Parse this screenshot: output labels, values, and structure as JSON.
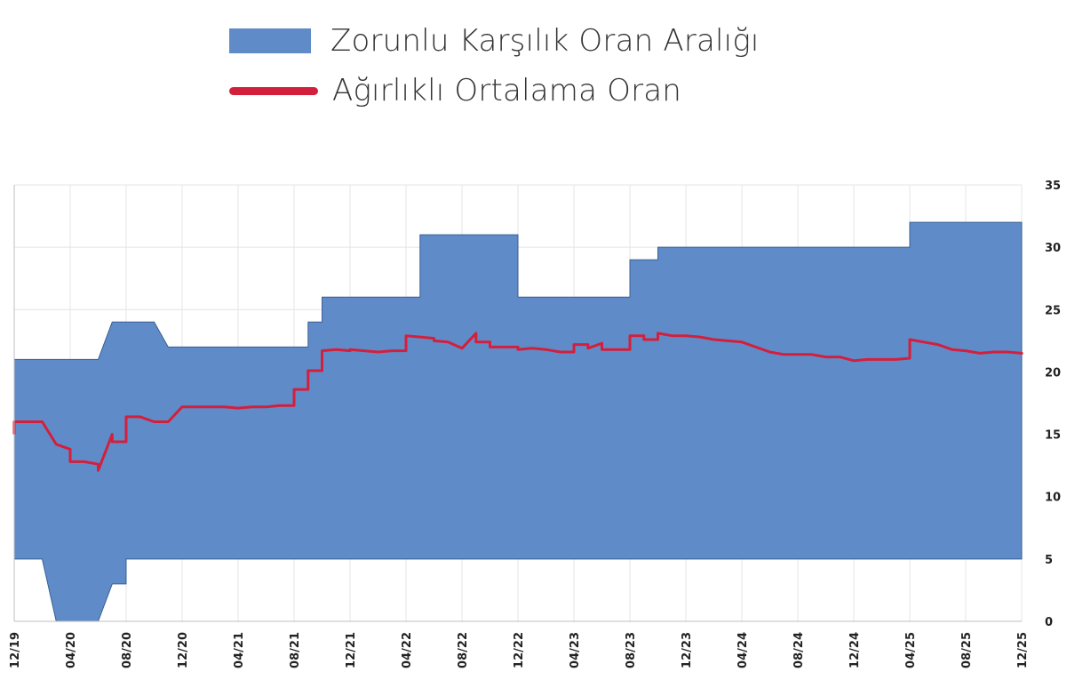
{
  "legend": {
    "range_label": "Zorunlu Karşılık Oran Aralığı",
    "average_label": "Ağırlıklı Ortalama Oran"
  },
  "colors": {
    "range": "#5f8cc8",
    "average": "#d41f3c",
    "grid": "#e4e4e4"
  },
  "chart_data": {
    "type": "area",
    "title": "",
    "xlabel": "",
    "ylabel": "",
    "x_start": "12/19",
    "x_end": "12/25",
    "x_unit": "month",
    "ylim": [
      0,
      35
    ],
    "yticks": [
      0,
      5,
      10,
      15,
      20,
      25,
      30,
      35
    ],
    "y_axis_side": "right",
    "grid": true,
    "legend_position": "top-center",
    "x_tick_labels": [
      "12/19",
      "04/20",
      "08/20",
      "12/20",
      "04/21",
      "08/21",
      "12/21",
      "04/22",
      "08/22",
      "12/22",
      "04/23",
      "08/23",
      "12/23",
      "04/24",
      "08/24",
      "12/24",
      "04/25",
      "08/25",
      "12/25"
    ],
    "series": [
      {
        "name": "Zorunlu Karşılık Oran Aralığı",
        "kind": "range_area",
        "upper": [
          [
            "12/19",
            21
          ],
          [
            "03/20",
            21
          ],
          [
            "04/20",
            21
          ],
          [
            "05/20",
            21
          ],
          [
            "06/20",
            21
          ],
          [
            "07/20",
            24
          ],
          [
            "09/20",
            24
          ],
          [
            "10/20",
            24
          ],
          [
            "11/20",
            22
          ],
          [
            "12/20",
            22
          ],
          [
            "08/21",
            22
          ],
          [
            "09/21",
            22
          ],
          [
            "09/21",
            24
          ],
          [
            "10/21",
            24
          ],
          [
            "10/21",
            26
          ],
          [
            "05/22",
            26
          ],
          [
            "05/22",
            31
          ],
          [
            "11/22",
            31
          ],
          [
            "12/22",
            31
          ],
          [
            "12/22",
            26
          ],
          [
            "07/23",
            26
          ],
          [
            "08/23",
            26
          ],
          [
            "08/23",
            29
          ],
          [
            "09/23",
            29
          ],
          [
            "10/23",
            29
          ],
          [
            "10/23",
            30
          ],
          [
            "03/25",
            30
          ],
          [
            "04/25",
            30
          ],
          [
            "04/25",
            32
          ],
          [
            "12/25",
            32
          ]
        ],
        "lower": [
          [
            "12/19",
            5
          ],
          [
            "02/20",
            5
          ],
          [
            "03/20",
            0
          ],
          [
            "06/20",
            0
          ],
          [
            "07/20",
            3
          ],
          [
            "08/20",
            3
          ],
          [
            "08/20",
            5
          ],
          [
            "12/25",
            5
          ]
        ]
      },
      {
        "name": "Ağırlıklı Ortalama Oran",
        "kind": "line",
        "points": [
          [
            "12/19",
            15
          ],
          [
            "12/19",
            16
          ],
          [
            "02/20",
            16
          ],
          [
            "03/20",
            14.2
          ],
          [
            "04/20",
            13.8
          ],
          [
            "04/20",
            12.8
          ],
          [
            "05/20",
            12.8
          ],
          [
            "06/20",
            12.6
          ],
          [
            "06/20",
            12.1
          ],
          [
            "07/20",
            15
          ],
          [
            "07/20",
            14.4
          ],
          [
            "08/20",
            14.4
          ],
          [
            "08/20",
            16.4
          ],
          [
            "09/20",
            16.4
          ],
          [
            "10/20",
            16
          ],
          [
            "11/20",
            16
          ],
          [
            "12/20",
            17.2
          ],
          [
            "01/21",
            17.2
          ],
          [
            "02/21",
            17.2
          ],
          [
            "03/21",
            17.2
          ],
          [
            "04/21",
            17.1
          ],
          [
            "05/21",
            17.2
          ],
          [
            "06/21",
            17.2
          ],
          [
            "07/21",
            17.3
          ],
          [
            "08/21",
            17.3
          ],
          [
            "08/21",
            18.6
          ],
          [
            "09/21",
            18.6
          ],
          [
            "09/21",
            20.1
          ],
          [
            "10/21",
            20.1
          ],
          [
            "10/21",
            21.7
          ],
          [
            "11/21",
            21.8
          ],
          [
            "12/21",
            21.7
          ],
          [
            "12/21",
            21.8
          ],
          [
            "01/22",
            21.7
          ],
          [
            "02/22",
            21.6
          ],
          [
            "03/22",
            21.7
          ],
          [
            "04/22",
            21.7
          ],
          [
            "04/22",
            22.9
          ],
          [
            "05/22",
            22.8
          ],
          [
            "06/22",
            22.7
          ],
          [
            "06/22",
            22.5
          ],
          [
            "07/22",
            22.4
          ],
          [
            "08/22",
            21.9
          ],
          [
            "09/22",
            23.1
          ],
          [
            "09/22",
            22.4
          ],
          [
            "10/22",
            22.4
          ],
          [
            "10/22",
            22
          ],
          [
            "11/22",
            22
          ],
          [
            "12/22",
            22
          ],
          [
            "12/22",
            21.8
          ],
          [
            "01/23",
            21.9
          ],
          [
            "02/23",
            21.8
          ],
          [
            "03/23",
            21.6
          ],
          [
            "04/23",
            21.6
          ],
          [
            "04/23",
            22.2
          ],
          [
            "05/23",
            22.2
          ],
          [
            "05/23",
            21.9
          ],
          [
            "06/23",
            22.3
          ],
          [
            "06/23",
            21.8
          ],
          [
            "07/23",
            21.8
          ],
          [
            "08/23",
            21.8
          ],
          [
            "08/23",
            22.9
          ],
          [
            "09/23",
            22.9
          ],
          [
            "09/23",
            22.6
          ],
          [
            "10/23",
            22.6
          ],
          [
            "10/23",
            23.1
          ],
          [
            "11/23",
            22.9
          ],
          [
            "12/23",
            22.9
          ],
          [
            "01/24",
            22.8
          ],
          [
            "02/24",
            22.6
          ],
          [
            "03/24",
            22.5
          ],
          [
            "04/24",
            22.4
          ],
          [
            "05/24",
            22
          ],
          [
            "06/24",
            21.6
          ],
          [
            "07/24",
            21.4
          ],
          [
            "08/24",
            21.4
          ],
          [
            "09/24",
            21.4
          ],
          [
            "10/24",
            21.2
          ],
          [
            "11/24",
            21.2
          ],
          [
            "12/24",
            20.9
          ],
          [
            "01/25",
            21
          ],
          [
            "02/25",
            21
          ],
          [
            "03/25",
            21
          ],
          [
            "04/25",
            21.1
          ],
          [
            "04/25",
            22.6
          ],
          [
            "05/25",
            22.4
          ],
          [
            "06/25",
            22.2
          ],
          [
            "07/25",
            21.8
          ],
          [
            "08/25",
            21.7
          ],
          [
            "09/25",
            21.5
          ],
          [
            "10/25",
            21.6
          ],
          [
            "11/25",
            21.6
          ],
          [
            "12/25",
            21.5
          ],
          [
            "12/25",
            21.4
          ]
        ]
      }
    ]
  }
}
